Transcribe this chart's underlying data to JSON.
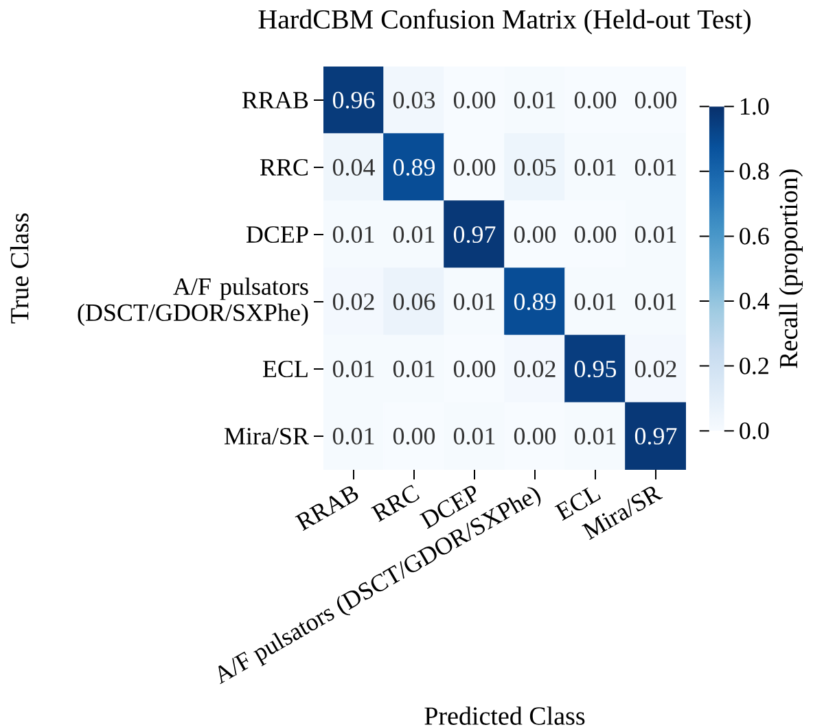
{
  "chart_data": {
    "type": "heatmap",
    "title": "HardCBM Confusion Matrix (Held-out Test)",
    "xlabel": "Predicted Class",
    "ylabel": "True Class",
    "clabel": "Recall (proportion)",
    "categories": [
      "RRAB",
      "RRC",
      "DCEP",
      "A/F pulsators (DSCT/GDOR/SXPhe)",
      "ECL",
      "Mira/SR"
    ],
    "y_categories": [
      "RRAB",
      "RRC",
      "DCEP",
      "A/F pulsators (DSCT/GDOR/SXPhe)",
      "ECL",
      "Mira/SR"
    ],
    "cells": [
      [
        0.96,
        0.03,
        0.0,
        0.01,
        0.0,
        0.0
      ],
      [
        0.04,
        0.89,
        0.0,
        0.05,
        0.01,
        0.01
      ],
      [
        0.01,
        0.01,
        0.97,
        0.0,
        0.0,
        0.01
      ],
      [
        0.02,
        0.06,
        0.01,
        0.89,
        0.01,
        0.01
      ],
      [
        0.01,
        0.01,
        0.0,
        0.02,
        0.95,
        0.02
      ],
      [
        0.01,
        0.0,
        0.01,
        0.0,
        0.01,
        0.97
      ]
    ],
    "cell_labels": [
      [
        "0.96",
        "0.03",
        "0.00",
        "0.01",
        "0.00",
        "0.00"
      ],
      [
        "0.04",
        "0.89",
        "0.00",
        "0.05",
        "0.01",
        "0.01"
      ],
      [
        "0.01",
        "0.01",
        "0.97",
        "0.00",
        "0.00",
        "0.01"
      ],
      [
        "0.02",
        "0.06",
        "0.01",
        "0.89",
        "0.01",
        "0.01"
      ],
      [
        "0.01",
        "0.01",
        "0.00",
        "0.02",
        "0.95",
        "0.02"
      ],
      [
        "0.01",
        "0.00",
        "0.01",
        "0.00",
        "0.01",
        "0.97"
      ]
    ],
    "clim": [
      0,
      1
    ],
    "cticks": [
      {
        "value": 0,
        "label": "0.0"
      },
      0.2,
      0.4,
      0.6,
      0.8,
      {
        "value": 1,
        "label": "1.0"
      }
    ]
  }
}
